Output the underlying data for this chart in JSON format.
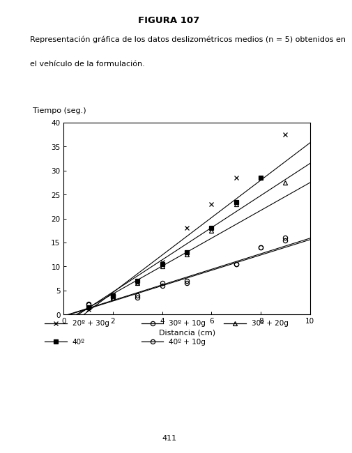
{
  "title": "FIGURA 107",
  "caption_line1": "Representación gráfica de los datos deslizométricos medios (n = 5) obtenidos en",
  "caption_line2": "el vehículo de la formulación.",
  "xlabel": "Distancia (cm)",
  "ylabel": "Tiempo (seg.)",
  "xlim": [
    0,
    10
  ],
  "ylim": [
    0,
    40
  ],
  "xticks": [
    0,
    2,
    4,
    6,
    8,
    10
  ],
  "yticks": [
    0,
    5,
    10,
    15,
    20,
    25,
    30,
    35,
    40
  ],
  "page_number": "411",
  "plot_series": [
    {
      "label": "20º + 30g",
      "marker": "x",
      "fillstyle": "full",
      "x": [
        1,
        2,
        3,
        4,
        5,
        6,
        7,
        9
      ],
      "y": [
        1.0,
        3.5,
        6.5,
        11.0,
        18.0,
        23.0,
        28.5,
        37.5
      ],
      "slope": 3.9,
      "intercept": -3.2
    },
    {
      "label": "40º",
      "marker": "s",
      "fillstyle": "full",
      "x": [
        1,
        2,
        3,
        4,
        5,
        6,
        7,
        8
      ],
      "y": [
        1.5,
        4.0,
        7.0,
        10.5,
        13.0,
        18.0,
        23.5,
        28.5
      ],
      "slope": 3.35,
      "intercept": -2.0
    },
    {
      "label": "30º + 20g",
      "marker": "^",
      "fillstyle": "none",
      "x": [
        1,
        2,
        3,
        4,
        5,
        6,
        7,
        9
      ],
      "y": [
        1.5,
        3.5,
        6.5,
        10.0,
        12.5,
        17.5,
        23.0,
        27.5
      ],
      "slope": 2.9,
      "intercept": -1.5
    },
    {
      "label": "30º + 10g",
      "marker": "o",
      "fillstyle": "none",
      "x": [
        1,
        2,
        3,
        4,
        5,
        7,
        8,
        9
      ],
      "y": [
        2.0,
        3.5,
        3.5,
        6.0,
        6.5,
        10.5,
        14.0,
        15.5
      ],
      "slope": 1.6,
      "intercept": -0.4
    },
    {
      "label": "40º + 10g",
      "marker": "o",
      "fillstyle": "none",
      "x": [
        1,
        2,
        3,
        4,
        5,
        7,
        8,
        9
      ],
      "y": [
        2.2,
        4.0,
        4.0,
        6.5,
        7.0,
        10.5,
        14.0,
        16.0
      ],
      "slope": 1.62,
      "intercept": -0.3
    }
  ],
  "legend_row1": [
    {
      "label": "20º + 30g",
      "marker": "x",
      "fillstyle": "full"
    },
    {
      "label": "30º + 10g",
      "marker": "o",
      "fillstyle": "none"
    },
    {
      "label": "30º + 20g",
      "marker": "^",
      "fillstyle": "none"
    }
  ],
  "legend_row2": [
    {
      "label": "40º",
      "marker": "s",
      "fillstyle": "full"
    },
    {
      "label": "40º + 10g",
      "marker": "o",
      "fillstyle": "none"
    }
  ],
  "background_color": "#ffffff",
  "font_color": "#000000"
}
